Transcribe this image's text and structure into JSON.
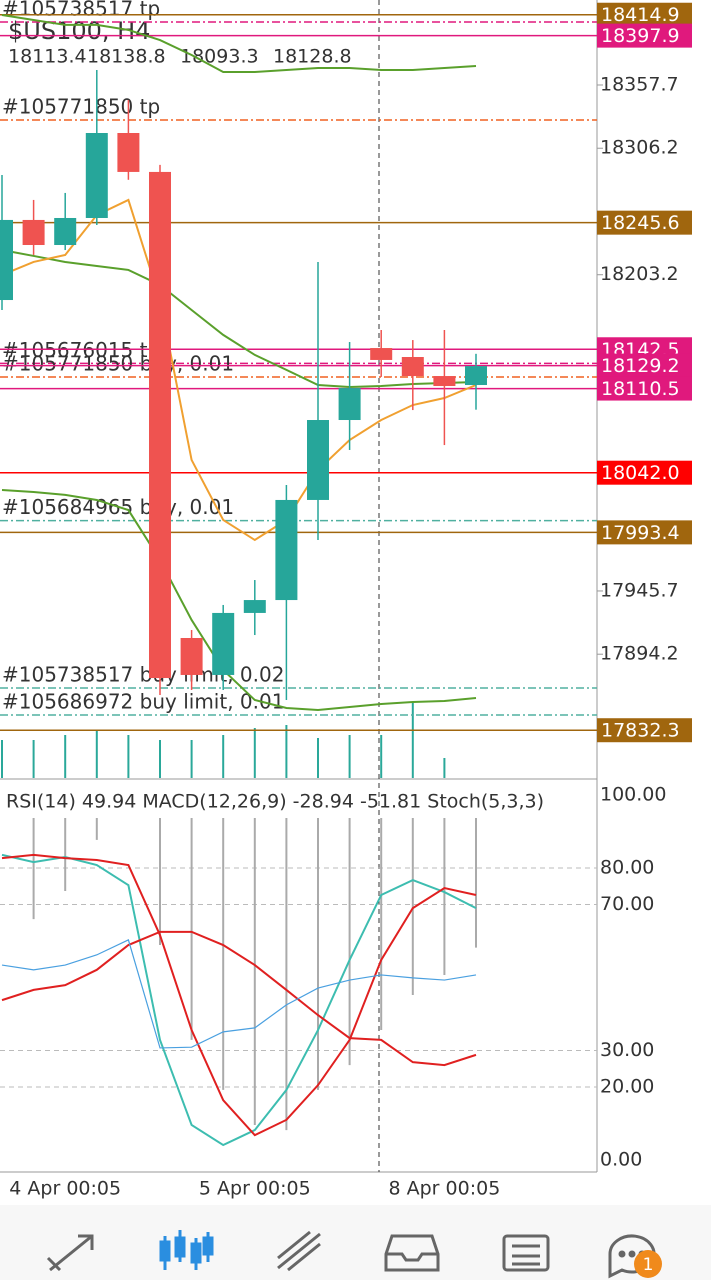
{
  "symbol": "$US100, H4",
  "indicator_header": "RSI(14) 49.94 MACD(12,26,9) -28.94 -51.81 Stoch(5,3,3)",
  "price_axis": {
    "ylim": [
      17793.4,
      18426.9
    ],
    "yticks": [
      18357.7,
      18306.2,
      18203.2,
      17945.7,
      17894.2
    ]
  },
  "candles": [
    {
      "open": 18182.6,
      "high": 18284.4,
      "low": 18174.5,
      "close": 18247.8
    },
    {
      "open": 18247.8,
      "high": 18264.1,
      "low": 18219.3,
      "close": 18227.4
    },
    {
      "open": 18227.4,
      "high": 18269.8,
      "low": 18223.3,
      "close": 18249.4
    },
    {
      "open": 18249.4,
      "high": 18369.9,
      "low": 18243.7,
      "close": 18318.6
    },
    {
      "open": 18318.6,
      "high": 18345.5,
      "low": 18280.5,
      "close": 18286.9
    },
    {
      "open": 18286.9,
      "high": 18292.6,
      "low": 17861.0,
      "close": 17874.8
    },
    {
      "open": 17907.4,
      "high": 17913.9,
      "low": 17865.1,
      "close": 17877.3
    },
    {
      "open": 17877.3,
      "high": 17934.3,
      "low": 17865.1,
      "close": 17927.8
    },
    {
      "open": 17927.8,
      "high": 17954.6,
      "low": 17909.8,
      "close": 17938.3
    },
    {
      "open": 17938.3,
      "high": 18032.0,
      "low": 17856.9,
      "close": 18019.8
    },
    {
      "open": 18019.8,
      "high": 18213.6,
      "low": 17987.2,
      "close": 18084.9
    },
    {
      "open": 18084.9,
      "high": 18148.4,
      "low": 18060.5,
      "close": 18110.9
    },
    {
      "open": 18143.5,
      "high": 18158.2,
      "low": 18120.0,
      "close": 18133.8
    },
    {
      "open": 18136.2,
      "high": 18150.0,
      "low": 18093.0,
      "close": 18120.7
    },
    {
      "open": 18120.7,
      "high": 18158.2,
      "low": 18064.5,
      "close": 18112.6
    },
    {
      "open": 18113.4,
      "high": 18138.8,
      "low": 18093.3,
      "close": 18128.8
    }
  ],
  "price_series": [
    {
      "color": "#5aa02c",
      "values": [
        18414.7,
        18410.6,
        18406.6,
        18406.6,
        18402.5,
        18394.3,
        18382.1,
        18368.3,
        18368.3,
        18369.9,
        18371.5,
        18371.5,
        18369.9,
        18369.9,
        18371.5,
        18373.2
      ]
    },
    {
      "color": "#5aa02c",
      "values": [
        18223.3,
        18218.5,
        18213.6,
        18210.3,
        18207.1,
        18194.9,
        18174.5,
        18154.2,
        18137.9,
        18125.7,
        18113.4,
        18111.8,
        18112.6,
        18114.2,
        18115.0,
        18115.9
      ]
    },
    {
      "color": "#f0a030",
      "values": [
        18203.0,
        18213.6,
        18219.3,
        18251.8,
        18264.1,
        18182.6,
        18052.4,
        18003.5,
        17987.2,
        18003.5,
        18044.2,
        18068.6,
        18084.9,
        18097.1,
        18102.8,
        18113.4
      ]
    },
    {
      "color": "#5aa02c",
      "values": [
        18027.9,
        18026.3,
        18023.9,
        18019.8,
        18011.6,
        17970.9,
        17922.1,
        17881.4,
        17856.9,
        17850.4,
        17848.8,
        17851.2,
        17853.7,
        17855.3,
        17856.1,
        17858.5
      ]
    }
  ],
  "volume": [
    38,
    38,
    43,
    48,
    43,
    38,
    38,
    43,
    50,
    53,
    40,
    43,
    43,
    75,
    20,
    0
  ],
  "price_lines": [
    {
      "price": 18414.9,
      "color": "#a0660e"
    },
    {
      "price": 18397.9,
      "color": "#e0197d"
    },
    {
      "price": 18245.6,
      "color": "#a0660e"
    },
    {
      "price": 18142.5,
      "color": "#e0197d"
    },
    {
      "price": 18129.2,
      "color": "#e0197d"
    },
    {
      "price": 18110.5,
      "color": "#e0197d"
    },
    {
      "price": 18042.0,
      "label": "18042.0",
      "color": "#ff0000"
    },
    {
      "price": 17993.4,
      "color": "#a0660e"
    },
    {
      "price": 17832.3,
      "color": "#a0660e"
    }
  ],
  "orders": [
    {
      "label": "#105738517 tp",
      "price": 18409.0,
      "color": "#e0197d"
    },
    {
      "label": "#105771850 tp",
      "price": 18329.2,
      "color": "#f06020"
    },
    {
      "label": "#105676015 tp",
      "price": 18131.0,
      "color": "#e0197d"
    },
    {
      "label": "#105771850 buy, 0.01",
      "price": 18119.9,
      "color": "#f06020"
    },
    {
      "label": "#105684965 buy, 0.01",
      "price": 18003.0,
      "color": "#50b0a0"
    },
    {
      "label": "#105738517 buy limit, 0.02",
      "price": 17866.7,
      "color": "#50b0a0"
    },
    {
      "label": "#105686972 buy limit, 0.01",
      "price": 17844.7,
      "color": "#50b0a0"
    }
  ],
  "indicator": {
    "ylim": [
      0,
      100
    ],
    "yticks": [
      {
        "value": 100,
        "label": "100.00"
      },
      {
        "value": 80,
        "label": "80.00"
      },
      {
        "value": 70,
        "label": "70.00"
      },
      {
        "value": 30,
        "label": "30.00"
      },
      {
        "value": 20,
        "label": "20.00"
      },
      {
        "value": 0,
        "label": "0.00"
      }
    ],
    "series": [
      {
        "color": "#3dbdb0",
        "values": [
          83.6,
          81.6,
          83.0,
          80.8,
          75.3,
          32.9,
          9.6,
          4.1,
          8.2,
          19.2,
          35.6,
          54.8,
          72.6,
          76.7,
          73.4,
          69.0
        ]
      },
      {
        "color": "#e02020",
        "values": [
          82.7,
          83.6,
          82.7,
          82.2,
          80.8,
          61.6,
          35.6,
          16.4,
          6.8,
          11.0,
          20.5,
          32.9,
          54.8,
          69.0,
          74.5,
          72.6
        ]
      },
      {
        "color": "#e02020",
        "values": [
          43.8,
          46.6,
          47.9,
          52.1,
          58.9,
          62.5,
          62.5,
          58.9,
          53.4,
          46.6,
          39.7,
          33.4,
          32.9,
          26.8,
          26.0,
          28.8
        ]
      },
      {
        "color": "#4aa0e0",
        "values": [
          53.4,
          52.1,
          53.4,
          56.2,
          60.3,
          30.7,
          30.9,
          35.1,
          36.2,
          42.5,
          47.1,
          49.3,
          50.7,
          49.9,
          49.3,
          50.7
        ]
      }
    ],
    "histogram_ends": [
      null,
      66.0,
      73.7,
      87.7,
      null,
      58.9,
      32.9,
      19.2,
      9.6,
      8.2,
      19.2,
      26.0,
      35.6,
      45.2,
      50.7,
      58.2
    ]
  },
  "time_labels": [
    {
      "index": 2,
      "label": "4 Apr 00:05"
    },
    {
      "index": 8,
      "label": "5 Apr 00:05"
    },
    {
      "index": 14,
      "label": "8 Apr 00:05"
    }
  ],
  "badge": "1"
}
